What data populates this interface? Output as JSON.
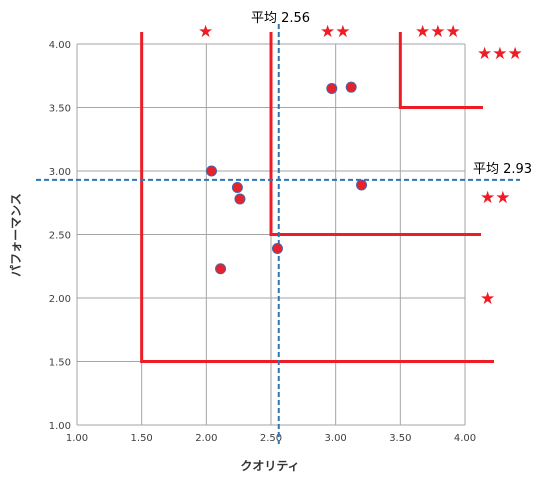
{
  "chart_data": {
    "type": "scatter",
    "xlabel": "クオリティ",
    "ylabel": "パフォーマンス",
    "xlim": [
      1.0,
      4.0
    ],
    "ylim": [
      1.0,
      4.0
    ],
    "x_ticks": [
      "1.00",
      "1.50",
      "2.00",
      "2.50",
      "3.00",
      "3.50",
      "4.00"
    ],
    "y_ticks": [
      "1.00",
      "1.50",
      "2.00",
      "2.50",
      "3.00",
      "3.50",
      "4.00"
    ],
    "grid": true,
    "points": [
      {
        "x": 2.97,
        "y": 3.65
      },
      {
        "x": 3.12,
        "y": 3.66
      },
      {
        "x": 2.04,
        "y": 3.0
      },
      {
        "x": 2.24,
        "y": 2.87
      },
      {
        "x": 2.26,
        "y": 2.78
      },
      {
        "x": 3.2,
        "y": 2.89
      },
      {
        "x": 2.55,
        "y": 2.39
      },
      {
        "x": 2.11,
        "y": 2.23
      }
    ],
    "averages": {
      "x": {
        "value": 2.56,
        "label": "平均 2.56"
      },
      "y": {
        "value": 2.93,
        "label": "平均 2.93"
      }
    },
    "rating_boundaries": [
      {
        "corner_x": 1.5,
        "corner_y": 1.5
      },
      {
        "corner_x": 2.5,
        "corner_y": 2.5
      },
      {
        "corner_x": 3.5,
        "corner_y": 3.5
      }
    ],
    "star_labels": {
      "top_1": "★",
      "top_2": "★★",
      "top_3": "★★★",
      "right_3": "★★★",
      "right_2": "★★",
      "right_1": "★"
    },
    "colors": {
      "point_fill": "#e8212b",
      "point_stroke": "#4a63a8",
      "average_line": "#2e75b6",
      "boundary": "#ee1c24",
      "grid": "#a6a6a6"
    }
  }
}
